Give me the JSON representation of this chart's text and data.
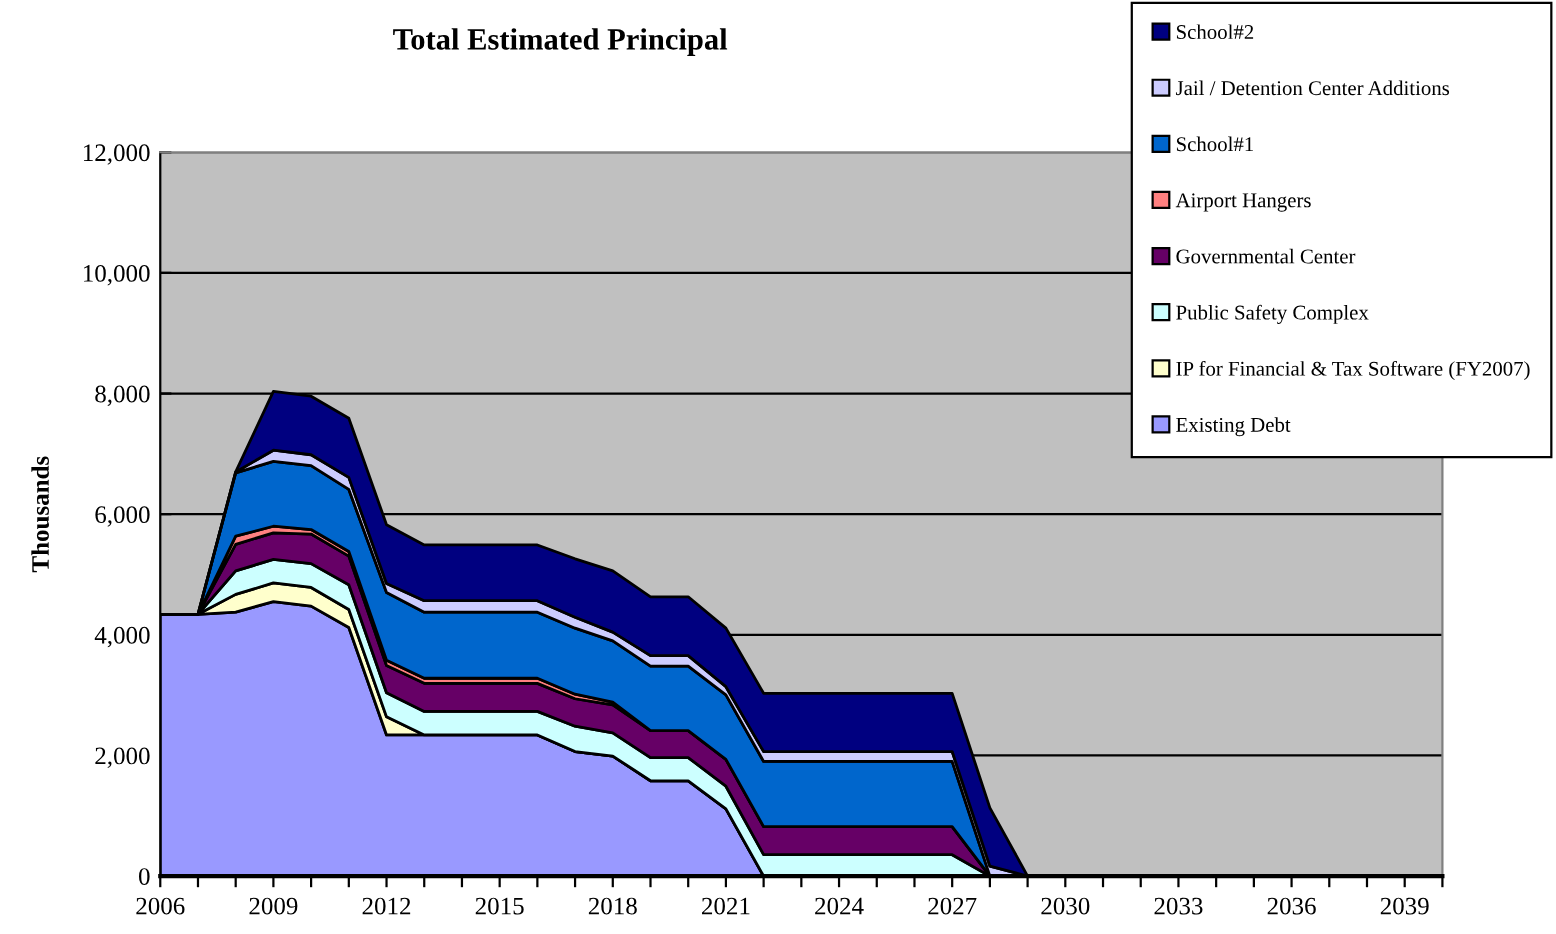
{
  "chart_data": {
    "type": "area",
    "stacked": true,
    "title": "Total Estimated Principal",
    "ylabel": "Thousands",
    "x": [
      2006,
      2007,
      2008,
      2009,
      2010,
      2011,
      2012,
      2013,
      2014,
      2015,
      2016,
      2017,
      2018,
      2019,
      2020,
      2021,
      2022,
      2023,
      2024,
      2025,
      2026,
      2027,
      2028,
      2029,
      2030,
      2031,
      2032,
      2033,
      2034,
      2035,
      2036,
      2037,
      2038,
      2039,
      2040
    ],
    "series": [
      {
        "name": "Existing Debt",
        "color": "#9999ff",
        "values": [
          4340,
          4340,
          4375,
          4550,
          4475,
          4120,
          2340,
          2340,
          2340,
          2340,
          2340,
          2065,
          1990,
          1580,
          1580,
          1115,
          0,
          0,
          0,
          0,
          0,
          0,
          0,
          0,
          0,
          0,
          0,
          0,
          0,
          0,
          0,
          0,
          0,
          0,
          0
        ]
      },
      {
        "name": "IP for Financial & Tax Software (FY2007)",
        "color": "#ffffcc",
        "values": [
          0,
          0,
          295,
          310,
          310,
          300,
          300,
          0,
          0,
          0,
          0,
          0,
          0,
          0,
          0,
          0,
          0,
          0,
          0,
          0,
          0,
          0,
          0,
          0,
          0,
          0,
          0,
          0,
          0,
          0,
          0,
          0,
          0,
          0,
          0
        ]
      },
      {
        "name": "Public Safety Complex",
        "color": "#ccffff",
        "values": [
          0,
          0,
          390,
          390,
          395,
          410,
          400,
          390,
          390,
          390,
          390,
          420,
          385,
          385,
          385,
          375,
          355,
          355,
          355,
          355,
          355,
          355,
          0,
          0,
          0,
          0,
          0,
          0,
          0,
          0,
          0,
          0,
          0,
          0,
          0
        ]
      },
      {
        "name": "Governmental Center",
        "color": "#660066",
        "values": [
          0,
          0,
          440,
          440,
          490,
          475,
          450,
          465,
          465,
          465,
          465,
          455,
          465,
          445,
          445,
          445,
          465,
          465,
          465,
          465,
          465,
          465,
          0,
          0,
          0,
          0,
          0,
          0,
          0,
          0,
          0,
          0,
          0,
          0,
          0
        ]
      },
      {
        "name": "Airport Hangers",
        "color": "#ff8080",
        "values": [
          0,
          0,
          135,
          110,
          75,
          75,
          90,
          85,
          85,
          85,
          85,
          75,
          45,
          0,
          0,
          0,
          0,
          0,
          0,
          0,
          0,
          0,
          0,
          0,
          0,
          0,
          0,
          0,
          0,
          0,
          0,
          0,
          0,
          0,
          0
        ]
      },
      {
        "name": "School#1",
        "color": "#0066cc",
        "values": [
          0,
          0,
          1050,
          1075,
          1060,
          1030,
          1120,
          1095,
          1095,
          1095,
          1095,
          1095,
          1015,
          1070,
          1070,
          1070,
          1080,
          1080,
          1080,
          1080,
          1080,
          1080,
          0,
          0,
          0,
          0,
          0,
          0,
          0,
          0,
          0,
          0,
          0,
          0,
          0
        ]
      },
      {
        "name": "Jail / Detention Center Additions",
        "color": "#ccccff",
        "values": [
          0,
          0,
          15,
          185,
          180,
          200,
          150,
          190,
          190,
          190,
          190,
          180,
          145,
          175,
          175,
          135,
          165,
          165,
          165,
          165,
          165,
          165,
          165,
          0,
          0,
          0,
          0,
          0,
          0,
          0,
          0,
          0,
          0,
          0,
          0
        ]
      },
      {
        "name": "School#2",
        "color": "#000080",
        "values": [
          0,
          0,
          0,
          975,
          970,
          980,
          975,
          925,
          925,
          925,
          925,
          970,
          1015,
          975,
          975,
          970,
          965,
          965,
          965,
          965,
          965,
          965,
          965,
          0,
          0,
          0,
          0,
          0,
          0,
          0,
          0,
          0,
          0,
          0,
          0
        ]
      }
    ],
    "xlim": [
      2006,
      2040
    ],
    "xticks": [
      2006,
      {
        "value": 2007,
        "label": null
      },
      {
        "value": 2008,
        "label": null
      },
      2009,
      {
        "value": 2010,
        "label": null
      },
      {
        "value": 2011,
        "label": null
      },
      2012,
      {
        "value": 2013,
        "label": null
      },
      {
        "value": 2014,
        "label": null
      },
      2015,
      {
        "value": 2016,
        "label": null
      },
      {
        "value": 2017,
        "label": null
      },
      2018,
      {
        "value": 2019,
        "label": null
      },
      {
        "value": 2020,
        "label": null
      },
      2021,
      {
        "value": 2022,
        "label": null
      },
      {
        "value": 2023,
        "label": null
      },
      2024,
      {
        "value": 2025,
        "label": null
      },
      {
        "value": 2026,
        "label": null
      },
      2027,
      {
        "value": 2028,
        "label": null
      },
      {
        "value": 2029,
        "label": null
      },
      2030,
      {
        "value": 2031,
        "label": null
      },
      {
        "value": 2032,
        "label": null
      },
      2033,
      {
        "value": 2034,
        "label": null
      },
      {
        "value": 2035,
        "label": null
      },
      2036,
      {
        "value": 2037,
        "label": null
      },
      {
        "value": 2038,
        "label": null
      },
      2039,
      {
        "value": 2040,
        "label": null
      }
    ],
    "ylim": [
      0,
      12000
    ],
    "yticks": [
      0,
      {
        "value": 2000,
        "label": "2,000"
      },
      {
        "value": 4000,
        "label": "4,000"
      },
      {
        "value": 6000,
        "label": "6,000"
      },
      {
        "value": 8000,
        "label": "8,000"
      },
      {
        "value": 10000,
        "label": "10,000"
      },
      {
        "value": 12000,
        "label": "12,000"
      }
    ],
    "grid": "y",
    "legend": "top right"
  }
}
